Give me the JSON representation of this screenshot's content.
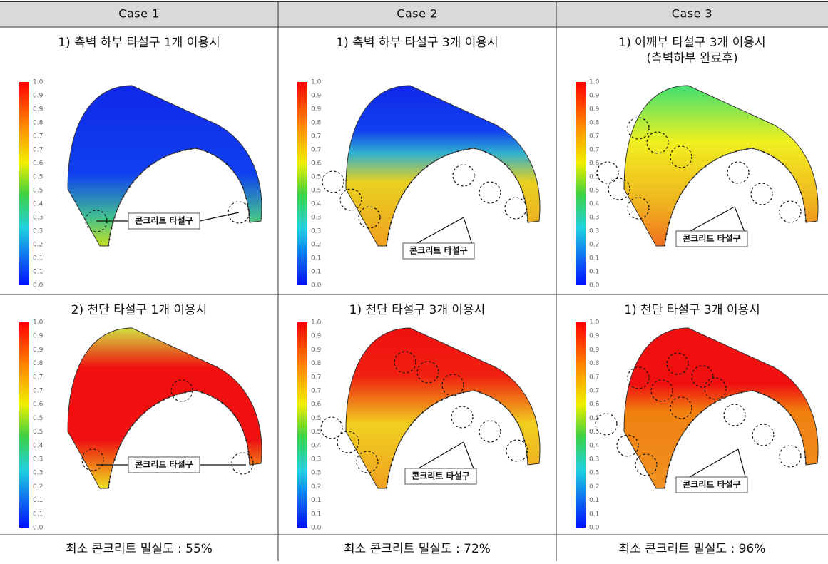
{
  "table": {
    "header": [
      "Case 1",
      "Case 2",
      "Case 3"
    ],
    "rows": [
      {
        "captions": [
          [
            "1) 측벽 하부 타설구 1개 이용시"
          ],
          [
            "1) 측벽 하부 타설구 3개 이용시"
          ],
          [
            "1) 어깨부 타설구 3개 이용시",
            "(측벽하부 완료후)"
          ]
        ]
      },
      {
        "captions": [
          [
            "2) 천단 타설구 1개 이용시"
          ],
          [
            "1) 천단 타설구 3개 이용시"
          ],
          [
            "1) 천단 타설구 3개 이용시"
          ]
        ]
      }
    ],
    "footer": [
      "최소 콘크리트 밀실도 : 55%",
      "최소 콘크리트 밀실도 : 72%",
      "최소 콘크리트 밀실도 : 96%"
    ]
  },
  "legend_labels": [
    "1.0",
    "0.9",
    "0.9",
    "0.8",
    "0.7",
    "0.7",
    "0.6",
    "0.5",
    "0.5",
    "0.4",
    "0.3",
    "0.3",
    "0.2",
    "0.1",
    "0.1",
    "0.0"
  ],
  "callout": "콘크리트 타설구"
}
